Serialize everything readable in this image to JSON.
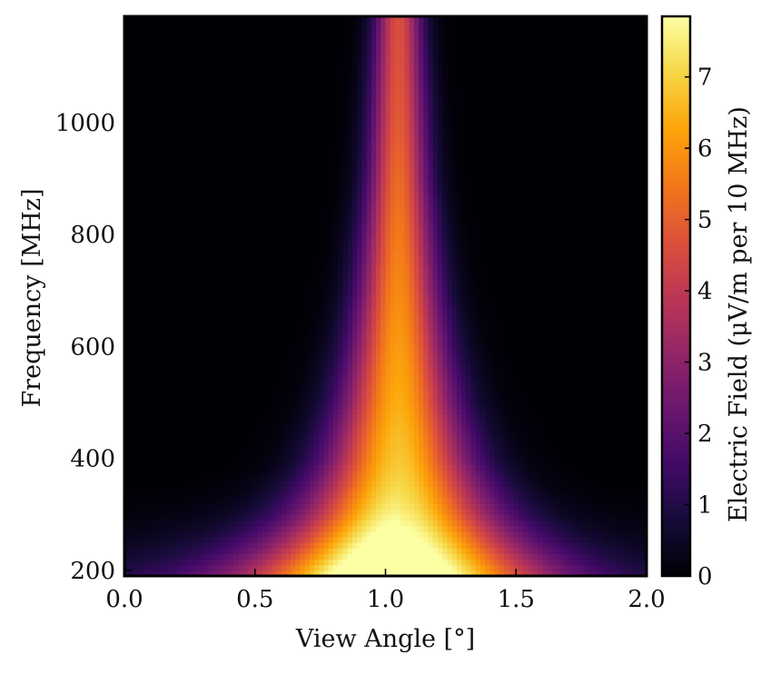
{
  "chart_data": {
    "type": "heatmap",
    "title": "",
    "xlabel": "View Angle [°]",
    "ylabel": "Frequency [MHz]",
    "colorbar_label": "Electric Field (μV/m per 10 MHz)",
    "colormap": "inferno",
    "xlim": [
      0.0,
      2.0
    ],
    "ylim": [
      190,
      1190
    ],
    "clim": [
      0,
      7.85
    ],
    "x_ticks": [
      0.0,
      0.5,
      1.0,
      1.5,
      2.0
    ],
    "x_tick_labels": [
      "0.0",
      "0.5",
      "1.0",
      "1.5",
      "2.0"
    ],
    "y_ticks": [
      200,
      400,
      600,
      800,
      1000
    ],
    "y_tick_labels": [
      "200",
      "400",
      "600",
      "800",
      "1000"
    ],
    "colorbar_ticks": [
      0,
      1,
      2,
      3,
      4,
      5,
      6,
      7
    ],
    "colorbar_tick_labels": [
      "0",
      "1",
      "2",
      "3",
      "4",
      "5",
      "6",
      "7"
    ],
    "peak": {
      "view_angle": 1.05,
      "frequency": 200,
      "field": 7.8
    },
    "cone_center_view_angle": 1.05,
    "cutoff_frequency": 1190,
    "grid": false,
    "ridge_profile": {
      "frequency": [
        200,
        300,
        400,
        500,
        600,
        700,
        800,
        900,
        1000,
        1100,
        1190
      ],
      "peak_field": [
        7.8,
        7.2,
        6.8,
        6.4,
        6.1,
        5.8,
        5.5,
        5.2,
        4.9,
        4.7,
        4.6
      ],
      "half_width_deg": [
        0.55,
        0.4,
        0.3,
        0.24,
        0.2,
        0.17,
        0.15,
        0.13,
        0.12,
        0.11,
        0.1
      ]
    }
  }
}
